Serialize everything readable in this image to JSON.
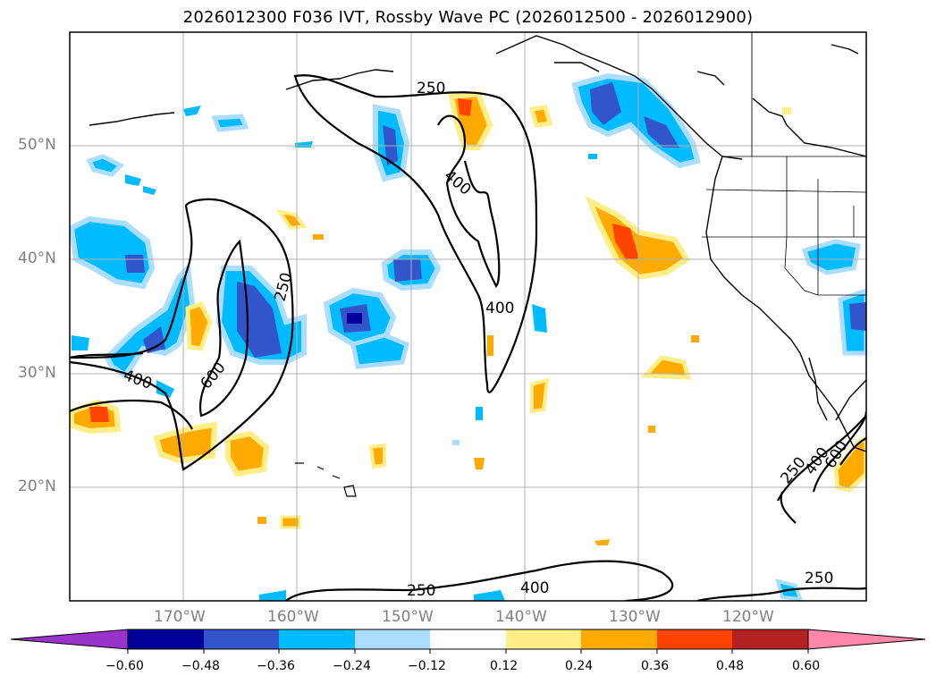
{
  "title": "2026012300 F036 IVT, Rossby Wave PC (2026012500 - 2026012900)",
  "lat_labels": [
    "50°N",
    "40°N",
    "30°N",
    "20°N"
  ],
  "lon_labels": [
    "170°W",
    "160°W",
    "150°W",
    "140°W",
    "130°W",
    "120°W"
  ],
  "contour_labels": [
    "250",
    "400",
    "400",
    "250",
    "400",
    "600",
    "250",
    "400",
    "250",
    "400",
    "600",
    "250"
  ],
  "colorbar": {
    "tick_labels": [
      "−0.60",
      "−0.48",
      "−0.36",
      "−0.24",
      "−0.12",
      "0.12",
      "0.24",
      "0.36",
      "0.48",
      "0.60"
    ],
    "colors": [
      "#9933cc",
      "#000099",
      "#3355cc",
      "#00bbff",
      "#aaddff",
      "#ffffff",
      "#ffee88",
      "#ffaa00",
      "#ff4400",
      "#b22222",
      "#ff88aa"
    ]
  },
  "fill_colors": {
    "neg_deep": "#000099",
    "neg_mid": "#3355cc",
    "neg_light": "#00bbff",
    "neg_faint": "#aaddff",
    "pos_faint": "#ffee88",
    "pos_mid": "#ffaa00",
    "pos_strong": "#ff4400"
  }
}
